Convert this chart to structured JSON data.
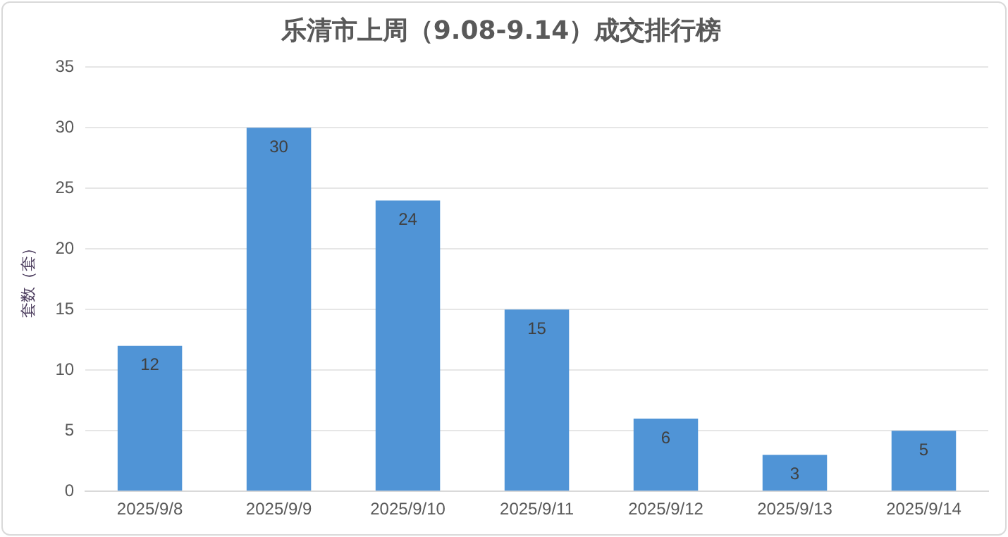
{
  "chart_data": {
    "type": "bar",
    "title": "乐清市上周（9.08-9.14）成交排行榜",
    "ylabel": "套数（套）",
    "categories": [
      "2025/9/8",
      "2025/9/9",
      "2025/9/10",
      "2025/9/11",
      "2025/9/12",
      "2025/9/13",
      "2025/9/14"
    ],
    "values": [
      12,
      30,
      24,
      15,
      6,
      3,
      5
    ],
    "color": "#5094d6",
    "ylim": [
      0,
      35
    ],
    "yticks": [
      0,
      5,
      10,
      15,
      20,
      25,
      30,
      35
    ],
    "grid": "y",
    "data_labels": true
  }
}
